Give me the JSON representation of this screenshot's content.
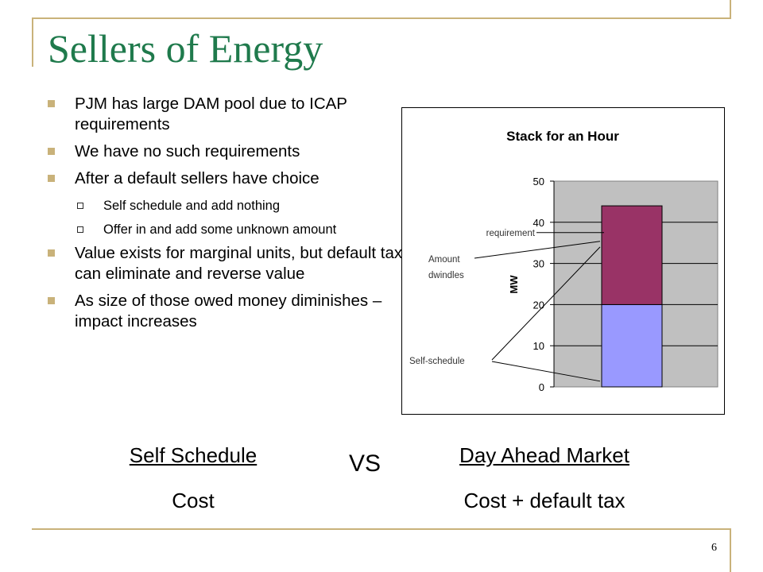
{
  "slide": {
    "title": "Sellers of Energy",
    "page_number": "6",
    "accent_color": "#c9b27a",
    "title_color": "#1f7a4c"
  },
  "bullets": [
    {
      "level": 1,
      "text": "PJM has large DAM pool due to ICAP requirements"
    },
    {
      "level": 1,
      "text": "We have no such requirements"
    },
    {
      "level": 1,
      "text": "After a default sellers have choice"
    },
    {
      "level": 2,
      "text": "Self schedule and add nothing"
    },
    {
      "level": 2,
      "text": "Offer in and add some unknown amount"
    },
    {
      "level": 1,
      "text": "Value exists for marginal units, but default tax can eliminate and reverse value"
    },
    {
      "level": 1,
      "text": "As size of those owed money diminishes – impact increases"
    }
  ],
  "chart_data": {
    "type": "bar",
    "stacked": true,
    "title": "Stack for an Hour",
    "ylabel": "MW",
    "ylim": [
      0,
      50
    ],
    "yticks": [
      0,
      10,
      20,
      30,
      40,
      50
    ],
    "categories": [
      ""
    ],
    "series": [
      {
        "name": "",
        "values": [
          20
        ],
        "color": "#9999ff"
      },
      {
        "name": "",
        "values": [
          24
        ],
        "color": "#993366"
      }
    ],
    "plot_background": "#c0c0c0",
    "grid": true,
    "annotations": [
      {
        "text": "requirement",
        "y": 37.5
      },
      {
        "text": "Amount dwindles",
        "y": 35
      },
      {
        "text": "Self-schedule",
        "y": 1
      }
    ]
  },
  "comparison": {
    "left_heading": "Self Schedule",
    "left_value": "Cost",
    "vs": "VS",
    "right_heading": "Day Ahead Market",
    "right_value": "Cost + default tax"
  }
}
